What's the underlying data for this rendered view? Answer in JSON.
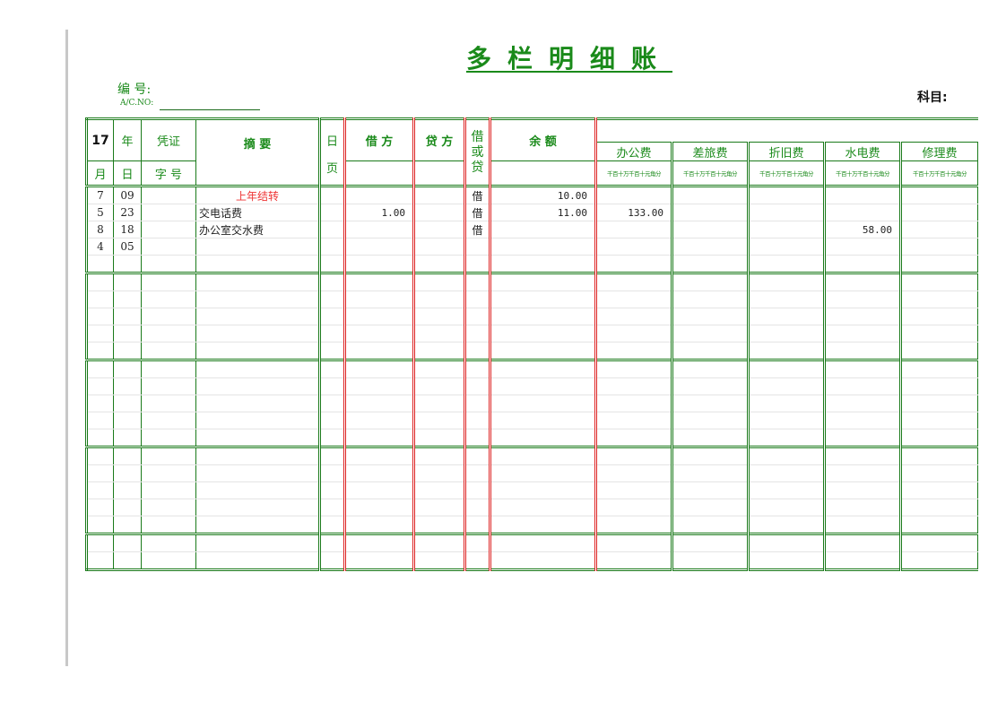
{
  "title": "多栏明细账",
  "acno_label": "编 号:",
  "acno_sub": "A/C.NO:",
  "subject_label": "科目:",
  "header": {
    "year": "17",
    "year_label": "年",
    "voucher": "凭证",
    "voucher_no": "字 号",
    "month": "月",
    "day": "日",
    "summary": "摘 要",
    "page_top": "日",
    "page_bottom": "页",
    "debit": "借 方",
    "credit": "贷 方",
    "dr_cr": "借或贷",
    "balance": "余 额",
    "columns": [
      "办公费",
      "差旅费",
      "折旧费",
      "水电费",
      "修理费"
    ],
    "units": "千百十万千百十元角分"
  },
  "rows": [
    {
      "month": "7",
      "day": "09",
      "summary": "上年结转",
      "debit": "",
      "dr_cr": "借",
      "balance": "10.00",
      "cols": [
        "",
        "",
        "",
        "",
        ""
      ]
    },
    {
      "month": "5",
      "day": "23",
      "summary": "交电话费",
      "debit": "1.00",
      "dr_cr": "借",
      "balance": "11.00",
      "cols": [
        "133.00",
        "",
        "",
        "",
        ""
      ]
    },
    {
      "month": "8",
      "day": "18",
      "summary": "办公室交水费",
      "debit": "",
      "dr_cr": "借",
      "balance": "",
      "cols": [
        "",
        "",
        "",
        "58.00",
        ""
      ]
    },
    {
      "month": "4",
      "day": "05",
      "summary": "",
      "debit": "",
      "dr_cr": "",
      "balance": "",
      "cols": [
        "",
        "",
        "",
        "",
        ""
      ]
    }
  ],
  "colors": {
    "green": "#1a8a1a",
    "red": "#dd2222"
  }
}
